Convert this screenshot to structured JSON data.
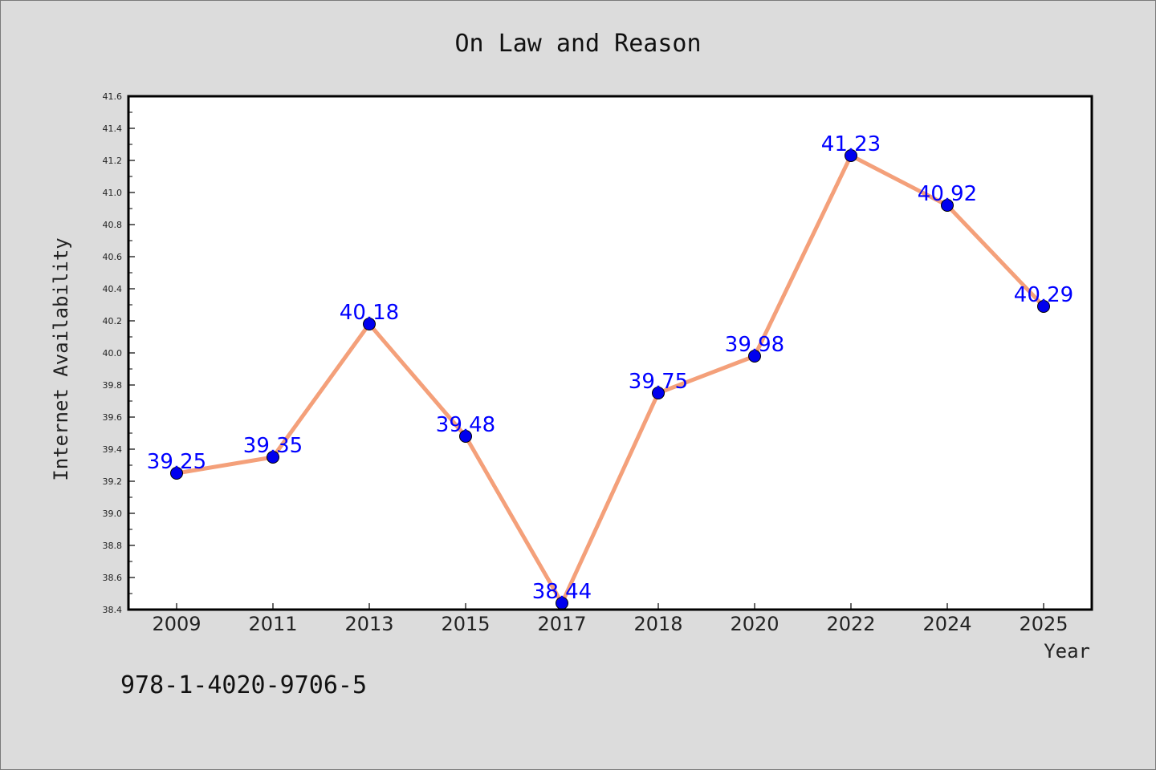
{
  "chart_data": {
    "type": "line",
    "title": "On Law and Reason",
    "xlabel": "Year",
    "ylabel": "Internet Availability",
    "categories": [
      "2009",
      "2011",
      "2013",
      "2015",
      "2017",
      "2018",
      "2020",
      "2022",
      "2024",
      "2025"
    ],
    "series": [
      {
        "values": [
          39.25,
          39.35,
          40.18,
          39.48,
          38.44,
          39.75,
          39.98,
          41.23,
          40.92,
          40.29
        ],
        "labels": [
          "39.25",
          "39.35",
          "40.18",
          "39.48",
          "38.44",
          "39.75",
          "39.98",
          "41.23",
          "40.92",
          "40.29"
        ],
        "line_color": "#f4a07a",
        "marker_color": "#0000ee",
        "label_color": "#0000ff"
      }
    ],
    "ylim": [
      38.4,
      41.6
    ],
    "yticks": [
      "38.4",
      "38.6",
      "38.8",
      "39.0",
      "39.2",
      "39.4",
      "39.6",
      "39.8",
      "40.0",
      "40.2",
      "40.4",
      "40.6",
      "40.8",
      "41.0",
      "41.2",
      "41.4",
      "41.6"
    ],
    "grid": false,
    "legend": "none"
  },
  "footer": {
    "isbn": "978-1-4020-9706-5"
  },
  "colors": {
    "background": "#dcdcdc",
    "plot_background": "#ffffff"
  }
}
